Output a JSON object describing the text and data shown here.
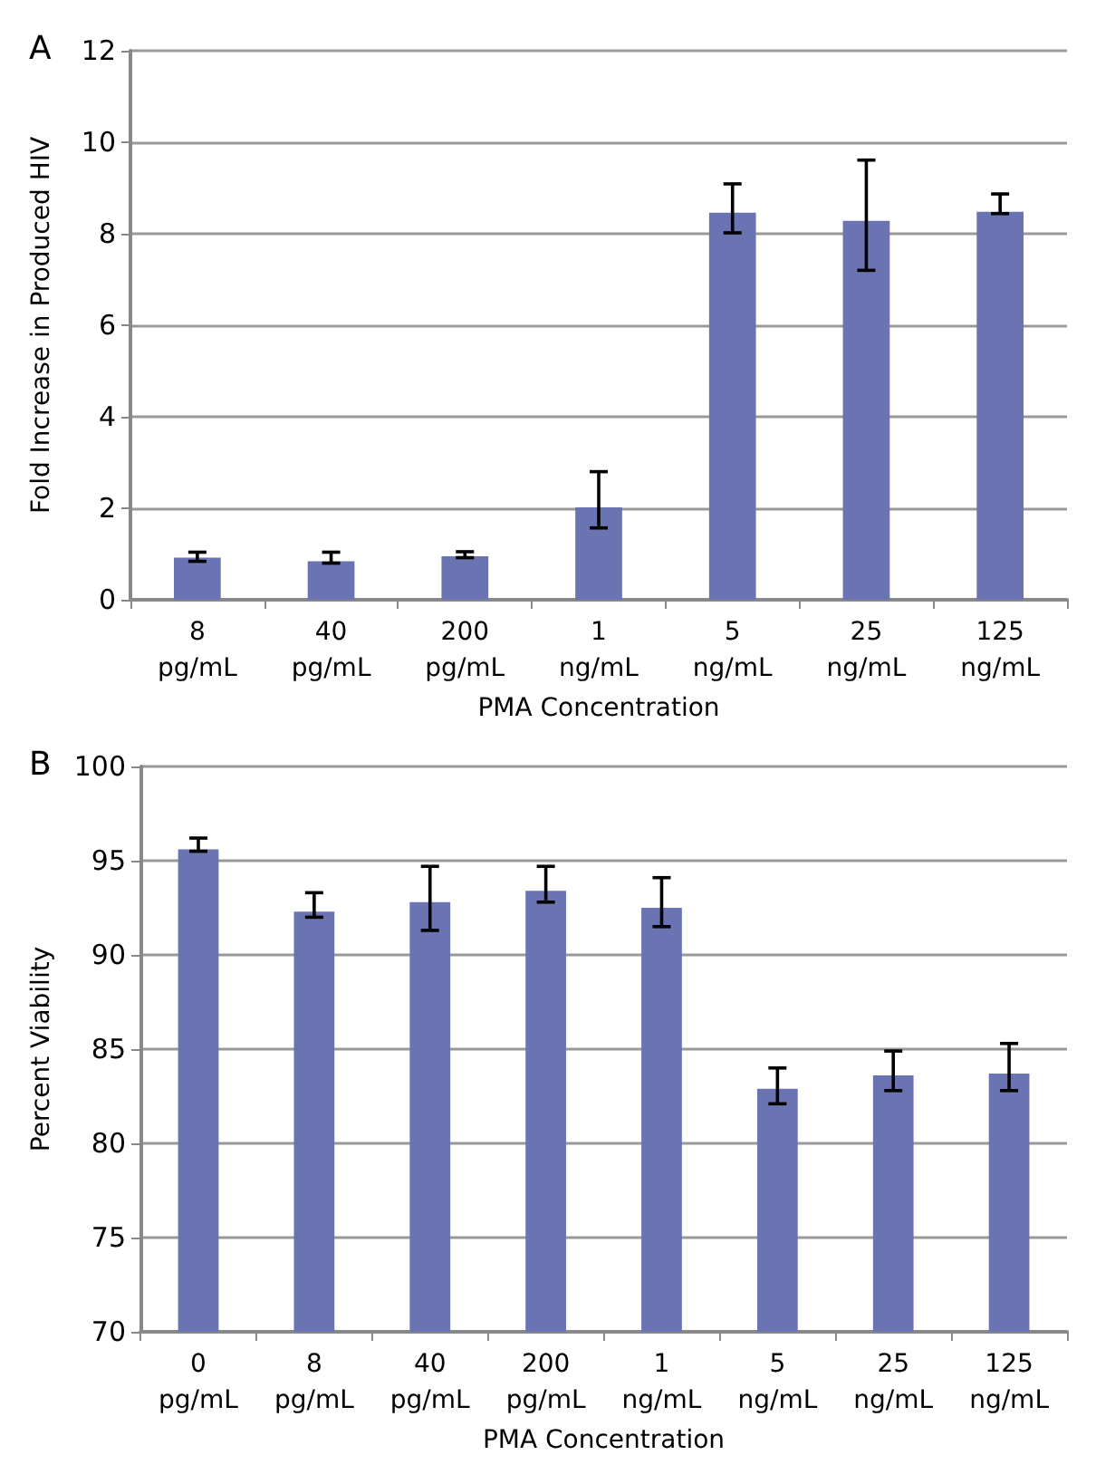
{
  "chart_data": [
    {
      "type": "bar",
      "xlabel": "PMA Concentration",
      "ylabel": "Fold Increase in Produced HIV",
      "annotations": [
        "A"
      ],
      "categories": [
        "8\npg/mL",
        "40\npg/mL",
        "200\npg/mL",
        "1\nng/mL",
        "5\nng/mL",
        "25\nng/mL",
        "125\nng/mL"
      ],
      "series": [
        {
          "color": "#6b74b2",
          "values": [
            0.92,
            0.84,
            0.95,
            2.02,
            8.46,
            8.28,
            8.48
          ],
          "errors": [
            [
              0.84,
              1.04
            ],
            [
              0.8,
              1.04
            ],
            [
              0.92,
              1.05
            ],
            [
              1.57,
              2.8
            ],
            [
              8.02,
              9.09
            ],
            [
              7.2,
              9.61
            ],
            [
              8.44,
              8.87
            ]
          ]
        }
      ],
      "ylim": [
        0,
        12
      ],
      "yticks": [
        0,
        2,
        4,
        6,
        8,
        10,
        12
      ],
      "grid": "y"
    },
    {
      "type": "bar",
      "xlabel": "PMA Concentration",
      "ylabel": "Percent Viability",
      "annotations": [
        "B"
      ],
      "categories": [
        "0\npg/mL",
        "8\npg/mL",
        "40\npg/mL",
        "200\npg/mL",
        "1\nng/mL",
        "5\nng/mL",
        "25\nng/mL",
        "125\nng/mL"
      ],
      "series": [
        {
          "color": "#6b74b2",
          "values": [
            95.6,
            92.3,
            92.8,
            93.4,
            92.5,
            82.9,
            83.6,
            83.7
          ],
          "errors": [
            [
              95.5,
              96.2
            ],
            [
              92.0,
              93.3
            ],
            [
              91.3,
              94.7
            ],
            [
              92.8,
              94.7
            ],
            [
              91.5,
              94.1
            ],
            [
              82.1,
              84.0
            ],
            [
              82.8,
              84.9
            ],
            [
              82.8,
              85.3
            ]
          ]
        }
      ],
      "ylim": [
        70,
        100
      ],
      "yticks": [
        70,
        75,
        80,
        85,
        90,
        95,
        100
      ],
      "grid": "y"
    }
  ]
}
